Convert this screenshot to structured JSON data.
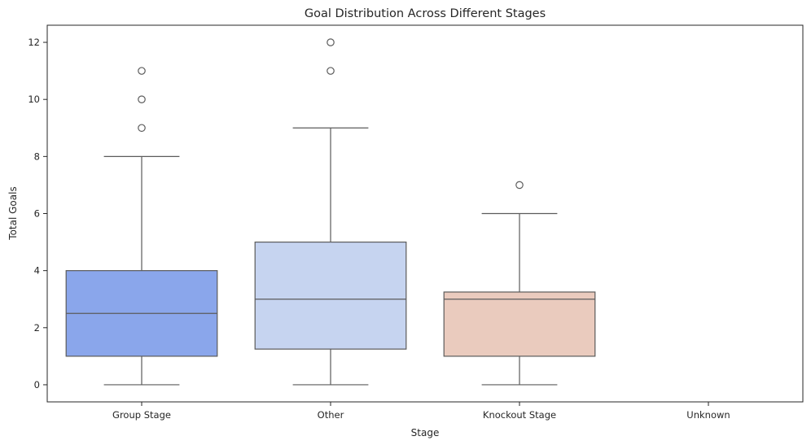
{
  "chart_data": {
    "type": "box",
    "title": "Goal Distribution Across Different Stages",
    "xlabel": "Stage",
    "ylabel": "Total Goals",
    "ylim": [
      -0.6,
      12.6
    ],
    "yticks": [
      0,
      2,
      4,
      6,
      8,
      10,
      12
    ],
    "grid": false,
    "legend": "none",
    "categories": [
      "Group Stage",
      "Other",
      "Knockout Stage",
      "Unknown"
    ],
    "boxes": [
      {
        "category": "Group Stage",
        "whislo": 0,
        "q1": 1,
        "median": 2.5,
        "q3": 4,
        "whishi": 8,
        "fliers": [
          9,
          10,
          11
        ],
        "color": "#8aa6eb"
      },
      {
        "category": "Other",
        "whislo": 0,
        "q1": 1.25,
        "median": 3,
        "q3": 5,
        "whishi": 9,
        "fliers": [
          11,
          12
        ],
        "color": "#c6d4f0"
      },
      {
        "category": "Knockout Stage",
        "whislo": 0,
        "q1": 1,
        "median": 3,
        "q3": 3.25,
        "whishi": 6,
        "fliers": [
          7
        ],
        "color": "#eacbbe"
      },
      {
        "category": "Unknown",
        "whislo": null,
        "q1": null,
        "median": null,
        "q3": null,
        "whishi": null,
        "fliers": [],
        "color": "#e8a287"
      }
    ]
  }
}
